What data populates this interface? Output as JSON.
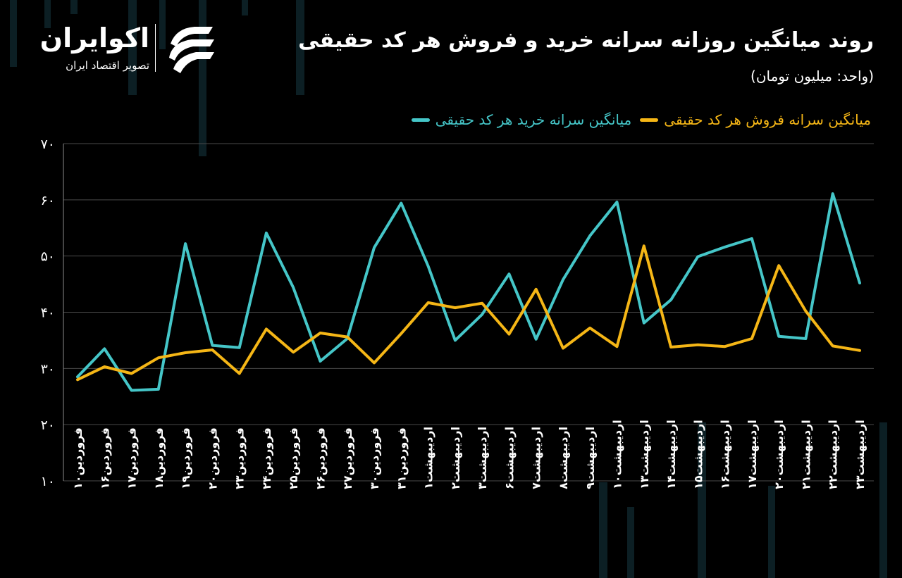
{
  "title": "روند میانگین روزانه سرانه خرید و فروش هر کد حقیقی",
  "unit": "(واحد: میلیون تومان)",
  "brand": {
    "name": "اکوایران",
    "tagline": "تصویر اقتصاد ایران"
  },
  "colors": {
    "background": "#000000",
    "buy": "#45c6c8",
    "sell": "#f5b616",
    "grid": "#4a4a4a"
  },
  "chart_data": {
    "type": "line",
    "title": "روند میانگین روزانه سرانه خرید و فروش هر کد حقیقی",
    "ylabel": "(واحد: میلیون تومان)",
    "ylim": [
      10,
      70
    ],
    "yticks": [
      10,
      20,
      30,
      40,
      50,
      60,
      70
    ],
    "ytick_labels": [
      "۱۰",
      "۲۰",
      "۳۰",
      "۴۰",
      "۵۰",
      "۶۰",
      "۷۰"
    ],
    "grid": true,
    "legend_position": "top-right",
    "categories": [
      "فروردین۱۰",
      "فروردین۱۶",
      "فروردین۱۷",
      "فروردین۱۸",
      "فروردین۱۹",
      "فروردین۲۰",
      "فروردین۲۳",
      "فروردین۲۴",
      "فروردین۲۵",
      "فروردین۲۶",
      "فروردین۲۷",
      "فروردین۳۰",
      "فروردین۳۱",
      "اردیبهشت۱",
      "اردیبهشت۲",
      "اردیبهشت۳",
      "اردیبهشت۶",
      "اردیبهشت۷",
      "اردیبهشت۸",
      "اردیبهشت۹",
      "اردیبهشت۱۰",
      "اردیبهشت۱۳",
      "اردیبهشت۱۴",
      "اردیبهشت۱۵",
      "اردیبهشت۱۶",
      "اردیبهشت۱۷",
      "اردیبهشت۲۰",
      "اردیبهشت۲۱",
      "اردیبهشت۲۲",
      "اردیبهشت۲۳"
    ],
    "series": [
      {
        "name": "میانگین سرانه خرید هر کد حقیقی",
        "color": "#45c6c8",
        "values": [
          28.5,
          33.5,
          26.1,
          26.3,
          52.2,
          34.1,
          33.7,
          54.1,
          44.4,
          31.3,
          35.3,
          51.5,
          59.4,
          48.2,
          35.0,
          39.6,
          46.8,
          35.2,
          45.8,
          53.6,
          59.6,
          38.1,
          42.2,
          49.9,
          51.6,
          53.1,
          35.7,
          35.3,
          61.1,
          45.2
        ]
      },
      {
        "name": "میانگین سرانه فروش هر کد حقیقی",
        "color": "#f5b616",
        "values": [
          28.0,
          30.3,
          29.1,
          31.9,
          32.8,
          33.3,
          29.1,
          37.0,
          32.9,
          36.3,
          35.6,
          31.0,
          36.2,
          41.7,
          40.8,
          41.6,
          36.1,
          44.1,
          33.6,
          37.2,
          33.9,
          51.8,
          33.8,
          34.2,
          33.9,
          35.3,
          48.3,
          40.2,
          34.0,
          33.2
        ]
      }
    ]
  }
}
